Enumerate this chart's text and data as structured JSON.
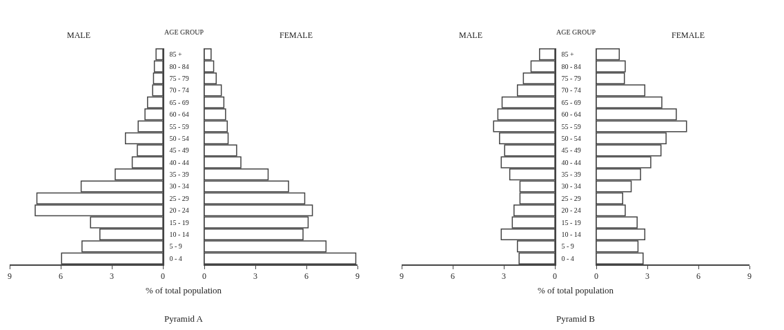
{
  "chart_data": [
    {
      "type": "bar",
      "orientation": "horizontal",
      "categories": [
        "85 +",
        "80 - 84",
        "75 - 79",
        "70 - 74",
        "65 - 69",
        "60 - 64",
        "55 - 59",
        "50 - 54",
        "45 - 49",
        "40 - 44",
        "35 - 39",
        "30 - 34",
        "25 - 29",
        "20 - 24",
        "15 - 19",
        "10 - 14",
        "5 - 9",
        "0 - 4"
      ],
      "xlim": [
        9,
        0
      ],
      "xticks": [
        9,
        6,
        3,
        0
      ],
      "series": [
        {
          "name": "MALE",
          "color": "#ffffff",
          "values": [
            0.4,
            0.5,
            0.55,
            0.6,
            0.9,
            1.05,
            1.45,
            2.2,
            1.5,
            1.8,
            2.8,
            4.8,
            7.4,
            7.5,
            4.25,
            3.7,
            4.75,
            5.95
          ]
        }
      ]
    },
    {
      "type": "bar",
      "orientation": "horizontal",
      "tick_labels": "x",
      "title": "Pyramid A",
      "xlabel": "% of total population",
      "ylabel": "AGE GROUP",
      "categories": [
        null,
        null,
        null,
        null,
        null,
        null,
        null,
        null,
        null,
        null,
        null,
        null,
        null,
        null,
        null,
        null,
        null,
        null
      ],
      "xlim": [
        0,
        9
      ],
      "xticks": [
        0,
        3,
        6,
        9
      ],
      "series": [
        {
          "name": "FEMALE",
          "color": "#ffffff",
          "values": [
            0.4,
            0.55,
            0.7,
            1.0,
            1.15,
            1.25,
            1.35,
            1.4,
            1.9,
            2.15,
            3.75,
            4.95,
            5.9,
            6.35,
            6.1,
            5.8,
            7.15,
            8.9
          ]
        }
      ]
    },
    {
      "type": "bar",
      "orientation": "horizontal",
      "categories": [
        "85 +",
        "80 - 84",
        "75 - 79",
        "70 - 74",
        "65 - 69",
        "60 - 64",
        "55 - 59",
        "50 - 54",
        "45 - 49",
        "40 - 44",
        "35 - 39",
        "30 - 34",
        "25 - 29",
        "20 - 24",
        "15 - 19",
        "10 - 14",
        "5 - 9",
        "0 - 4"
      ],
      "xlim": [
        9,
        0
      ],
      "xticks": [
        9,
        6,
        3,
        0
      ],
      "series": [
        {
          "name": "MALE",
          "color": "#ffffff",
          "values": [
            0.9,
            1.4,
            1.85,
            2.2,
            3.1,
            3.35,
            3.6,
            3.25,
            2.95,
            3.15,
            2.65,
            2.05,
            2.05,
            2.4,
            2.5,
            3.15,
            2.2,
            2.1
          ]
        }
      ]
    },
    {
      "type": "bar",
      "orientation": "horizontal",
      "tick_labels": "x",
      "title": "Pyramid B",
      "xlabel": "% of total population",
      "ylabel": "AGE GROUP",
      "categories": [
        null,
        null,
        null,
        null,
        null,
        null,
        null,
        null,
        null,
        null,
        null,
        null,
        null,
        null,
        null,
        null,
        null,
        null
      ],
      "xlim": [
        0,
        9
      ],
      "xticks": [
        0,
        3,
        6,
        9
      ],
      "series": [
        {
          "name": "FEMALE",
          "color": "#ffffff",
          "values": [
            1.35,
            1.7,
            1.65,
            2.85,
            3.85,
            4.7,
            5.3,
            4.1,
            3.8,
            3.2,
            2.6,
            2.05,
            1.55,
            1.7,
            2.4,
            2.85,
            2.45,
            2.75
          ]
        }
      ]
    }
  ]
}
